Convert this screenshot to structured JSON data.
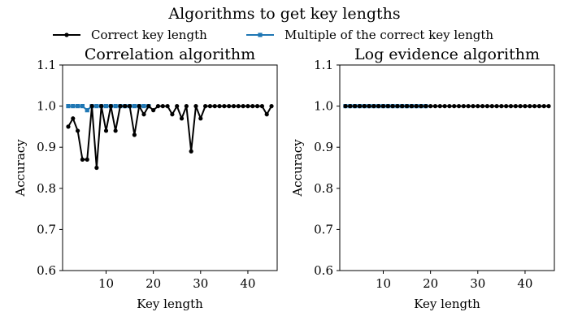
{
  "figure": {
    "title": "Algorithms to get key lengths",
    "legend": [
      {
        "label": "Correct key length",
        "color": "#000000",
        "marker": "circle"
      },
      {
        "label": "Multiple of the correct key length",
        "color": "#1f77b4",
        "marker": "square"
      }
    ]
  },
  "chart_data": [
    {
      "type": "line",
      "title": "Correlation algorithm",
      "xlabel": "Key length",
      "ylabel": "Accuracy",
      "xlim": [
        0.8,
        46.2
      ],
      "ylim": [
        0.6,
        1.1
      ],
      "xticks": [
        10,
        20,
        30,
        40
      ],
      "yticks": [
        0.6,
        0.7,
        0.8,
        0.9,
        1.0,
        1.1
      ],
      "x": [
        2,
        3,
        4,
        5,
        6,
        7,
        8,
        9,
        10,
        11,
        12,
        13,
        14,
        15,
        16,
        17,
        18,
        19,
        20,
        21,
        22,
        23,
        24,
        25,
        26,
        27,
        28,
        29,
        30,
        31,
        32,
        33,
        34,
        35,
        36,
        37,
        38,
        39,
        40,
        41,
        42,
        43,
        44,
        45
      ],
      "series": [
        {
          "name": "Multiple of the correct key length",
          "color": "#1f77b4",
          "marker": "square",
          "x": [
            2,
            3,
            4,
            5,
            6,
            7,
            8,
            9,
            10,
            11,
            12,
            13,
            14,
            15,
            16,
            17,
            18,
            19
          ],
          "values": [
            1.0,
            1.0,
            1.0,
            1.0,
            0.99,
            1.0,
            1.0,
            1.0,
            1.0,
            1.0,
            1.0,
            1.0,
            1.0,
            1.0,
            1.0,
            1.0,
            1.0,
            1.0
          ]
        },
        {
          "name": "Correct key length",
          "color": "#000000",
          "marker": "circle",
          "x": [
            2,
            3,
            4,
            5,
            6,
            7,
            8,
            9,
            10,
            11,
            12,
            13,
            14,
            15,
            16,
            17,
            18,
            19,
            20,
            21,
            22,
            23,
            24,
            25,
            26,
            27,
            28,
            29,
            30,
            31,
            32,
            33,
            34,
            35,
            36,
            37,
            38,
            39,
            40,
            41,
            42,
            43,
            44,
            45
          ],
          "values": [
            0.95,
            0.97,
            0.94,
            0.87,
            0.87,
            1.0,
            0.85,
            1.0,
            0.94,
            1.0,
            0.94,
            1.0,
            1.0,
            1.0,
            0.93,
            1.0,
            0.98,
            1.0,
            0.99,
            1.0,
            1.0,
            1.0,
            0.98,
            1.0,
            0.97,
            1.0,
            0.89,
            1.0,
            0.97,
            1.0,
            1.0,
            1.0,
            1.0,
            1.0,
            1.0,
            1.0,
            1.0,
            1.0,
            1.0,
            1.0,
            1.0,
            1.0,
            0.98,
            1.0
          ]
        }
      ]
    },
    {
      "type": "line",
      "title": "Log evidence algorithm",
      "xlabel": "Key length",
      "ylabel": "Accuracy",
      "xlim": [
        0.8,
        46.2
      ],
      "ylim": [
        0.6,
        1.1
      ],
      "xticks": [
        10,
        20,
        30,
        40
      ],
      "yticks": [
        0.6,
        0.7,
        0.8,
        0.9,
        1.0,
        1.1
      ],
      "series": [
        {
          "name": "Multiple of the correct key length",
          "color": "#1f77b4",
          "marker": "square",
          "x": [
            2,
            3,
            4,
            5,
            6,
            7,
            8,
            9,
            10,
            11,
            12,
            13,
            14,
            15,
            16,
            17,
            18,
            19
          ],
          "values": [
            1.0,
            1.0,
            1.0,
            1.0,
            1.0,
            1.0,
            1.0,
            1.0,
            1.0,
            1.0,
            1.0,
            1.0,
            1.0,
            1.0,
            1.0,
            1.0,
            1.0,
            1.0
          ]
        },
        {
          "name": "Correct key length",
          "color": "#000000",
          "marker": "circle",
          "x": [
            2,
            3,
            4,
            5,
            6,
            7,
            8,
            9,
            10,
            11,
            12,
            13,
            14,
            15,
            16,
            17,
            18,
            19,
            20,
            21,
            22,
            23,
            24,
            25,
            26,
            27,
            28,
            29,
            30,
            31,
            32,
            33,
            34,
            35,
            36,
            37,
            38,
            39,
            40,
            41,
            42,
            43,
            44,
            45
          ],
          "values": [
            1.0,
            1.0,
            1.0,
            1.0,
            1.0,
            1.0,
            1.0,
            1.0,
            1.0,
            1.0,
            1.0,
            1.0,
            1.0,
            1.0,
            1.0,
            1.0,
            1.0,
            1.0,
            1.0,
            1.0,
            1.0,
            1.0,
            1.0,
            1.0,
            1.0,
            1.0,
            1.0,
            1.0,
            1.0,
            1.0,
            1.0,
            1.0,
            1.0,
            1.0,
            1.0,
            1.0,
            1.0,
            1.0,
            1.0,
            1.0,
            1.0,
            1.0,
            1.0,
            1.0
          ]
        }
      ]
    }
  ]
}
